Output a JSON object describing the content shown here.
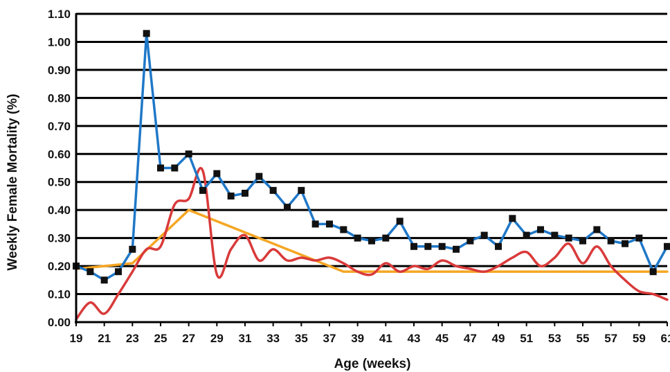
{
  "chart_data": {
    "type": "line",
    "xlabel": "Age (weeks)",
    "ylabel": "Weekly Female Mortality (%)",
    "xlim": [
      19,
      61
    ],
    "ylim": [
      0,
      1.1
    ],
    "x_ticks": [
      "19",
      "21",
      "23",
      "25",
      "27",
      "29",
      "31",
      "33",
      "35",
      "37",
      "39",
      "41",
      "43",
      "45",
      "47",
      "49",
      "51",
      "53",
      "55",
      "57",
      "59",
      "61"
    ],
    "y_ticks": [
      "0.00",
      "0.10",
      "0.20",
      "0.30",
      "0.40",
      "0.50",
      "0.60",
      "0.70",
      "0.80",
      "0.90",
      "1.00",
      "1.10"
    ],
    "grid": "horizontal",
    "series": [
      {
        "color": "#1f78c8",
        "marker": "square",
        "x": [
          19,
          20,
          21,
          22,
          23,
          24,
          25,
          26,
          27,
          28,
          29,
          30,
          31,
          32,
          33,
          34,
          35,
          36,
          37,
          38,
          39,
          40,
          41,
          42,
          43,
          44,
          45,
          46,
          47,
          48,
          49,
          50,
          51,
          52,
          53,
          54,
          55,
          56,
          57,
          58,
          59,
          60,
          61
        ],
        "values": [
          0.2,
          0.18,
          0.15,
          0.18,
          0.26,
          1.03,
          0.55,
          0.55,
          0.6,
          0.47,
          0.53,
          0.45,
          0.46,
          0.52,
          0.47,
          0.41,
          0.47,
          0.35,
          0.35,
          0.33,
          0.3,
          0.29,
          0.3,
          0.36,
          0.27,
          0.27,
          0.27,
          0.26,
          0.29,
          0.31,
          0.27,
          0.37,
          0.31,
          0.33,
          0.31,
          0.3,
          0.29,
          0.33,
          0.29,
          0.28,
          0.3,
          0.18,
          0.27
        ]
      },
      {
        "color": "#d93a3a",
        "x": [
          19,
          20,
          21,
          22,
          23,
          24,
          25,
          26,
          27,
          28,
          29,
          30,
          31,
          32,
          33,
          34,
          35,
          36,
          37,
          38,
          39,
          40,
          41,
          42,
          43,
          44,
          45,
          46,
          47,
          48,
          49,
          50,
          51,
          52,
          53,
          54,
          55,
          56,
          57,
          58,
          59,
          60,
          61
        ],
        "values": [
          0.01,
          0.07,
          0.03,
          0.1,
          0.18,
          0.26,
          0.27,
          0.42,
          0.44,
          0.54,
          0.17,
          0.26,
          0.31,
          0.22,
          0.26,
          0.22,
          0.23,
          0.22,
          0.23,
          0.21,
          0.18,
          0.17,
          0.21,
          0.18,
          0.2,
          0.19,
          0.22,
          0.2,
          0.19,
          0.18,
          0.2,
          0.23,
          0.25,
          0.2,
          0.23,
          0.28,
          0.21,
          0.27,
          0.2,
          0.15,
          0.11,
          0.1,
          0.08
        ]
      },
      {
        "color": "#f5a623",
        "x": [
          19,
          23,
          27,
          38,
          61
        ],
        "values": [
          0.19,
          0.21,
          0.4,
          0.18,
          0.18
        ]
      }
    ]
  }
}
